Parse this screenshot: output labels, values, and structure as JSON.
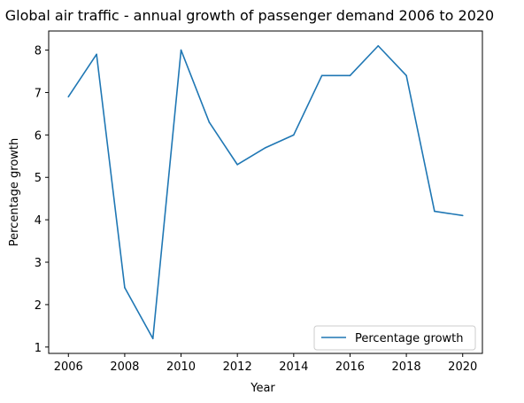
{
  "chart_data": {
    "type": "line",
    "title": "Global air traffic - annual growth of passenger demand 2006 to 2020",
    "xlabel": "Year",
    "ylabel": "Percentage growth",
    "x": [
      2006,
      2007,
      2008,
      2009,
      2010,
      2011,
      2012,
      2013,
      2014,
      2015,
      2016,
      2017,
      2018,
      2019,
      2020
    ],
    "series": [
      {
        "name": "Percentage growth",
        "color": "#1f77b4",
        "values": [
          6.9,
          7.9,
          2.4,
          1.2,
          8.0,
          6.3,
          5.3,
          5.7,
          6.0,
          7.4,
          7.4,
          8.1,
          7.4,
          4.2,
          4.1
        ]
      }
    ],
    "xticks": [
      "2006",
      "2008",
      "2010",
      "2012",
      "2014",
      "2016",
      "2018",
      "2020"
    ],
    "yticks": [
      "1",
      "2",
      "3",
      "4",
      "5",
      "6",
      "7",
      "8"
    ],
    "xlim": [
      2005.3,
      2020.7
    ],
    "ylim": [
      0.85,
      8.45
    ],
    "grid": false,
    "legend_position": "lower right"
  }
}
